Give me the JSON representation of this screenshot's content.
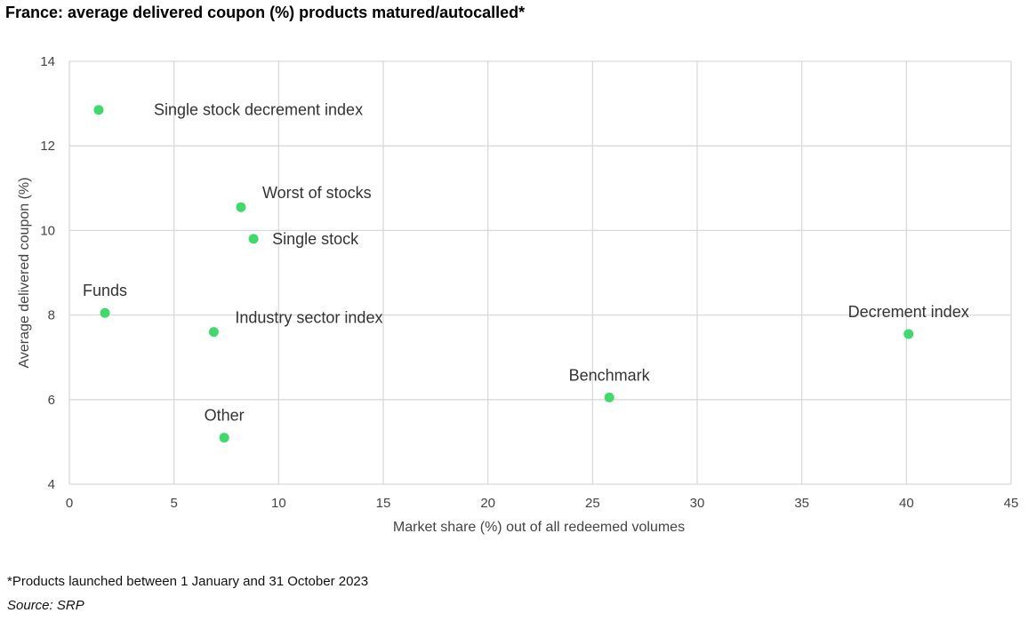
{
  "title": "France: average delivered coupon (%) products matured/autocalled*",
  "footnote": "*Products launched between 1 January and 31 October 2023",
  "source": "Source: SRP",
  "colors": {
    "point": "#3ddc6a",
    "grid": "#d9d9d9",
    "text": "#333333"
  },
  "chart_data": {
    "type": "scatter",
    "title": "France: average delivered coupon (%) products matured/autocalled*",
    "xlabel": "Market share (%) out of all redeemed volumes",
    "ylabel": "Average delivered coupon (%)",
    "xlim": [
      0,
      45
    ],
    "ylim": [
      4,
      14
    ],
    "xticks": [
      "0",
      "5",
      "10",
      "15",
      "20",
      "25",
      "30",
      "35",
      "40",
      "45"
    ],
    "yticks": [
      "4",
      "6",
      "8",
      "10",
      "12",
      "14"
    ],
    "grid": true,
    "points": [
      {
        "label": "Single stock decrement index",
        "x": 1.4,
        "y": 12.85,
        "label_pos": "right-far"
      },
      {
        "label": "Worst of stocks",
        "x": 8.2,
        "y": 10.55,
        "label_pos": "above-right"
      },
      {
        "label": "Single stock",
        "x": 8.8,
        "y": 9.8,
        "label_pos": "right"
      },
      {
        "label": "Funds",
        "x": 1.7,
        "y": 8.05,
        "label_pos": "above"
      },
      {
        "label": "Industry sector index",
        "x": 6.9,
        "y": 7.6,
        "label_pos": "above-right"
      },
      {
        "label": "Decrement index",
        "x": 40.1,
        "y": 7.55,
        "label_pos": "above"
      },
      {
        "label": "Benchmark",
        "x": 25.8,
        "y": 6.05,
        "label_pos": "above"
      },
      {
        "label": "Other",
        "x": 7.4,
        "y": 5.1,
        "label_pos": "above"
      }
    ]
  }
}
